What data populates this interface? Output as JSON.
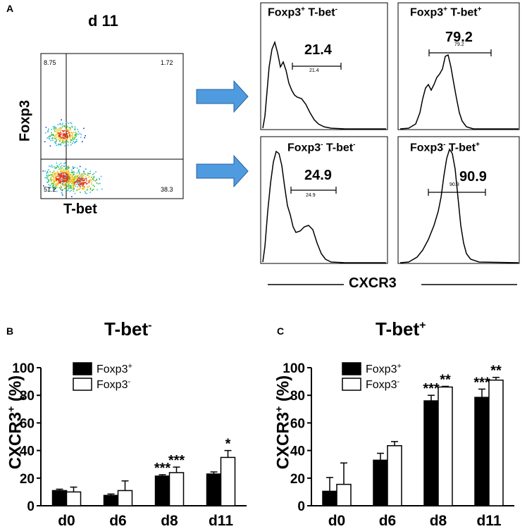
{
  "panel_a": {
    "letter": "A",
    "day_label": "d 11",
    "y_axis": "Foxp3",
    "x_axis": "T-bet",
    "quadrants": {
      "top_left": "8.75",
      "top_right": "1.72",
      "bottom_left": "51.2",
      "bottom_right": "38.3"
    },
    "histograms": [
      {
        "title_main1": "Foxp3",
        "title_sup1": "+",
        "title_main2": " T-bet",
        "title_sup2": "-",
        "value": "21.4",
        "small_value": "21.4"
      },
      {
        "title_main1": "Foxp3",
        "title_sup1": "+",
        "title_main2": " T-bet",
        "title_sup2": "+",
        "value": "79.2",
        "small_value": "79.2"
      },
      {
        "title_main1": "Foxp3",
        "title_sup1": "-",
        "title_main2": " T-bet",
        "title_sup2": "-",
        "value": "24.9",
        "small_value": "24.9"
      },
      {
        "title_main1": "Foxp3",
        "title_sup1": "-",
        "title_main2": " T-bet",
        "title_sup2": "+",
        "value": "90.9",
        "small_value": "90.9"
      }
    ],
    "histogram_axis": "CXCR3"
  },
  "chart_data": [
    {
      "panel": "B",
      "type": "bar",
      "title_main": "T-bet",
      "title_sup": "-",
      "ylabel_main": "CXCR3",
      "ylabel_sup": "+",
      "ylabel_suffix": " (%)",
      "categories": [
        "d0",
        "d6",
        "d8",
        "d11"
      ],
      "ylim": [
        0,
        100
      ],
      "yticks": [
        "0",
        "20",
        "40",
        "60",
        "80",
        "100"
      ],
      "series": [
        {
          "name": "Foxp3",
          "name_sup": "+",
          "fill": "#000000",
          "values": [
            11,
            7.5,
            21.5,
            23
          ],
          "errors": [
            1,
            1,
            1,
            1.5
          ]
        },
        {
          "name": "Foxp3",
          "name_sup": "-",
          "fill": "#ffffff",
          "values": [
            10,
            11,
            24,
            35
          ],
          "errors": [
            3.5,
            7,
            4,
            5
          ]
        }
      ],
      "significance": [
        [
          "",
          ""
        ],
        [
          "",
          ""
        ],
        [
          "***",
          "***"
        ],
        [
          "",
          "*"
        ]
      ]
    },
    {
      "panel": "C",
      "type": "bar",
      "title_main": "T-bet",
      "title_sup": "+",
      "ylabel_main": "CXCR3",
      "ylabel_sup": "+",
      "ylabel_suffix": " (%)",
      "categories": [
        "d0",
        "d6",
        "d8",
        "d11"
      ],
      "ylim": [
        0,
        100
      ],
      "yticks": [
        "0",
        "20",
        "40",
        "60",
        "80",
        "100"
      ],
      "series": [
        {
          "name": "Foxp3",
          "name_sup": "+",
          "fill": "#000000",
          "values": [
            10.5,
            33,
            76,
            78.5
          ],
          "errors": [
            10,
            5,
            4,
            6
          ]
        },
        {
          "name": "Foxp3",
          "name_sup": "-",
          "fill": "#ffffff",
          "values": [
            15.5,
            43.5,
            86,
            91
          ],
          "errors": [
            15.5,
            3,
            0.5,
            2
          ]
        }
      ],
      "significance": [
        [
          "",
          ""
        ],
        [
          "",
          ""
        ],
        [
          "***",
          "**"
        ],
        [
          "***",
          "**"
        ]
      ]
    }
  ]
}
